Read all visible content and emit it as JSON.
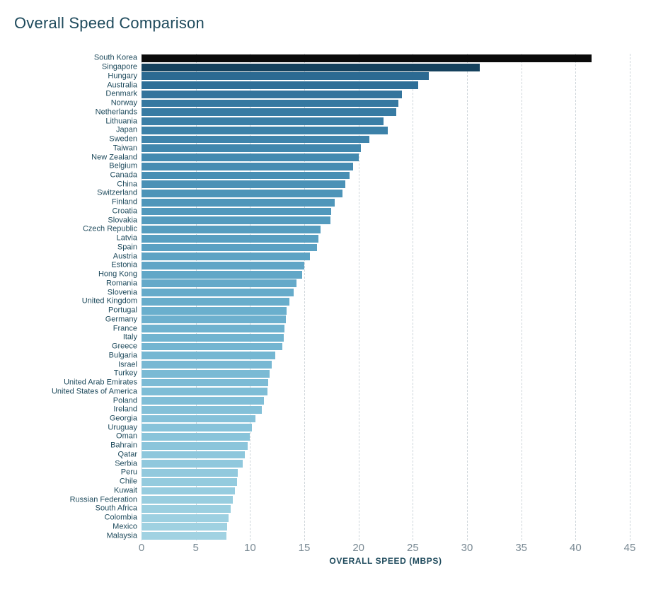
{
  "chart": {
    "type": "bar-horizontal",
    "title": "Overall Speed Comparison",
    "title_color": "#1e4a5c",
    "title_fontsize": 22,
    "background_color": "#ffffff",
    "grid_color": "#cfd6db",
    "label_color": "#1e4a5c",
    "label_fontsize": 11,
    "tick_color": "#7a8a94",
    "tick_fontsize": 15,
    "x_axis_title": "OVERALL SPEED (MBPS)",
    "x_axis_title_fontsize": 12,
    "xlim": [
      0,
      45
    ],
    "xticks": [
      0,
      5,
      10,
      15,
      20,
      25,
      30,
      35,
      40,
      45
    ],
    "bar_gap_ratio": 0.15,
    "items": [
      {
        "label": "South Korea",
        "value": 41.5,
        "color": "#0a0a0a"
      },
      {
        "label": "Singapore",
        "value": 31.2,
        "color": "#15415d"
      },
      {
        "label": "Hungary",
        "value": 26.5,
        "color": "#2c6a92"
      },
      {
        "label": "Australia",
        "value": 25.5,
        "color": "#2f6f97"
      },
      {
        "label": "Denmark",
        "value": 24.0,
        "color": "#33749c"
      },
      {
        "label": "Norway",
        "value": 23.7,
        "color": "#3578a0"
      },
      {
        "label": "Netherlands",
        "value": 23.5,
        "color": "#377ba3"
      },
      {
        "label": "Lithuania",
        "value": 22.3,
        "color": "#3a7ea6"
      },
      {
        "label": "Japan",
        "value": 22.7,
        "color": "#3c81a8"
      },
      {
        "label": "Sweden",
        "value": 21.0,
        "color": "#3f84ab"
      },
      {
        "label": "Taiwan",
        "value": 20.2,
        "color": "#4187ad"
      },
      {
        "label": "New Zealand",
        "value": 20.0,
        "color": "#438ab0"
      },
      {
        "label": "Belgium",
        "value": 19.5,
        "color": "#468cb2"
      },
      {
        "label": "Canada",
        "value": 19.2,
        "color": "#488fb4"
      },
      {
        "label": "China",
        "value": 18.8,
        "color": "#4a91b6"
      },
      {
        "label": "Switzerland",
        "value": 18.5,
        "color": "#4d94b8"
      },
      {
        "label": "Finland",
        "value": 17.8,
        "color": "#4f96ba"
      },
      {
        "label": "Croatia",
        "value": 17.5,
        "color": "#5198bc"
      },
      {
        "label": "Slovakia",
        "value": 17.4,
        "color": "#549bbe"
      },
      {
        "label": "Czech Republic",
        "value": 16.5,
        "color": "#569dbf"
      },
      {
        "label": "Latvia",
        "value": 16.3,
        "color": "#589fc1"
      },
      {
        "label": "Spain",
        "value": 16.2,
        "color": "#5ba1c3"
      },
      {
        "label": "Austria",
        "value": 15.5,
        "color": "#5da3c4"
      },
      {
        "label": "Estonia",
        "value": 15.0,
        "color": "#5fa5c6"
      },
      {
        "label": "Hong Kong",
        "value": 14.8,
        "color": "#61a7c7"
      },
      {
        "label": "Romania",
        "value": 14.3,
        "color": "#64a9c9"
      },
      {
        "label": "Slovenia",
        "value": 14.0,
        "color": "#66abca"
      },
      {
        "label": "United Kingdom",
        "value": 13.6,
        "color": "#68adcb"
      },
      {
        "label": "Portugal",
        "value": 13.4,
        "color": "#6aafcd"
      },
      {
        "label": "Germany",
        "value": 13.3,
        "color": "#6db0ce"
      },
      {
        "label": "France",
        "value": 13.2,
        "color": "#6fb2cf"
      },
      {
        "label": "Italy",
        "value": 13.1,
        "color": "#71b4d0"
      },
      {
        "label": "Greece",
        "value": 13.0,
        "color": "#73b5d1"
      },
      {
        "label": "Bulgaria",
        "value": 12.3,
        "color": "#75b7d2"
      },
      {
        "label": "Israel",
        "value": 12.0,
        "color": "#78b8d3"
      },
      {
        "label": "Turkey",
        "value": 11.8,
        "color": "#7abad4"
      },
      {
        "label": "United Arab Emirates",
        "value": 11.7,
        "color": "#7cbbd5"
      },
      {
        "label": "United States of America",
        "value": 11.6,
        "color": "#7ebdd6"
      },
      {
        "label": "Poland",
        "value": 11.3,
        "color": "#80bed7"
      },
      {
        "label": "Ireland",
        "value": 11.1,
        "color": "#83c0d8"
      },
      {
        "label": "Georgia",
        "value": 10.5,
        "color": "#85c1d9"
      },
      {
        "label": "Uruguay",
        "value": 10.2,
        "color": "#87c3da"
      },
      {
        "label": "Oman",
        "value": 10.0,
        "color": "#89c4da"
      },
      {
        "label": "Bahrain",
        "value": 9.8,
        "color": "#8bc5db"
      },
      {
        "label": "Qatar",
        "value": 9.5,
        "color": "#8ec7dc"
      },
      {
        "label": "Serbia",
        "value": 9.3,
        "color": "#90c8dd"
      },
      {
        "label": "Peru",
        "value": 8.9,
        "color": "#92c9dd"
      },
      {
        "label": "Chile",
        "value": 8.8,
        "color": "#94cbde"
      },
      {
        "label": "Kuwait",
        "value": 8.6,
        "color": "#96ccdf"
      },
      {
        "label": "Russian Federation",
        "value": 8.4,
        "color": "#98cddf"
      },
      {
        "label": "South Africa",
        "value": 8.2,
        "color": "#9bcfe0"
      },
      {
        "label": "Colombia",
        "value": 8.0,
        "color": "#9dd0e1"
      },
      {
        "label": "Mexico",
        "value": 7.9,
        "color": "#9fd1e1"
      },
      {
        "label": "Malaysia",
        "value": 7.8,
        "color": "#a1d2e2"
      }
    ]
  }
}
